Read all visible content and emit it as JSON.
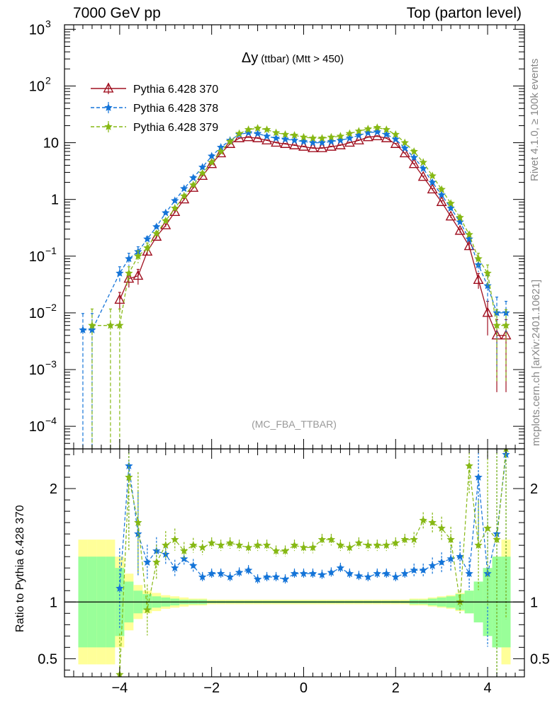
{
  "header": {
    "left": "7000 GeV pp",
    "right": "Top (parton level)"
  },
  "side_labels": {
    "top": "Rivet 4.1.0, ≥ 100k events",
    "bottom": "mcplots.cern.ch [arXiv:2401.10621]"
  },
  "chart_data": {
    "type": "line",
    "title_symbol": "Δy",
    "title_main": "(ttbar)",
    "title_cut": "(Mtt > 450)",
    "analysis_label": "(MC_FBA_TTBAR)",
    "xlabel": "",
    "ylabel": "",
    "ratio_ylabel": "Ratio to Pythia 6.428 370",
    "xlim": [
      -5.2,
      4.8
    ],
    "ylim": [
      4e-05,
      1200
    ],
    "yscale": "log",
    "ratio_ylim": [
      0.34,
      2.35
    ],
    "x_ticks": [
      -4,
      -2,
      0,
      2,
      4
    ],
    "x_tick_labels": [
      "−4",
      "−2",
      "0",
      "2",
      "4"
    ],
    "y_ticks": [
      0.0001,
      0.001,
      0.01,
      0.1,
      1,
      10,
      100,
      1000
    ],
    "y_tick_labels": [
      {
        "base": "10",
        "exp": "−4"
      },
      {
        "base": "10",
        "exp": "−3"
      },
      {
        "base": "10",
        "exp": "−2"
      },
      {
        "base": "10",
        "exp": "−1"
      },
      {
        "base": "1",
        "exp": ""
      },
      {
        "base": "10",
        "exp": ""
      },
      {
        "base": "10",
        "exp": "2"
      },
      {
        "base": "10",
        "exp": "3"
      }
    ],
    "ratio_ticks": [
      0.5,
      1,
      2
    ],
    "ratio_tick_labels": [
      "0.5",
      "1",
      "2"
    ],
    "legend_position": "top-left",
    "x": [
      -4.8,
      -4.6,
      -4.4,
      -4.2,
      -4.0,
      -3.8,
      -3.6,
      -3.4,
      -3.2,
      -3.0,
      -2.8,
      -2.6,
      -2.4,
      -2.2,
      -2.0,
      -1.8,
      -1.6,
      -1.4,
      -1.2,
      -1.0,
      -0.8,
      -0.6,
      -0.4,
      -0.2,
      0.0,
      0.2,
      0.4,
      0.6,
      0.8,
      1.0,
      1.2,
      1.4,
      1.6,
      1.8,
      2.0,
      2.2,
      2.4,
      2.6,
      2.8,
      3.0,
      3.2,
      3.4,
      3.6,
      3.8,
      4.0,
      4.2,
      4.4
    ],
    "series": [
      {
        "name": "Pythia 6.428 370",
        "color": "#a01020",
        "marker": "triangle",
        "dash": "",
        "values": [
          null,
          null,
          null,
          null,
          0.017,
          0.04,
          0.045,
          0.12,
          0.22,
          0.35,
          0.6,
          1.0,
          1.6,
          2.6,
          4.2,
          6.5,
          9.5,
          12.0,
          12.5,
          12.0,
          11.0,
          10.0,
          9.5,
          9.0,
          8.5,
          8.0,
          8.0,
          8.5,
          9.0,
          10.0,
          11.0,
          12.5,
          13.0,
          12.0,
          9.5,
          6.5,
          4.2,
          2.5,
          1.5,
          0.9,
          0.5,
          0.28,
          0.15,
          0.038,
          0.01,
          0.004,
          0.004
        ],
        "errors_rel": [
          0,
          0,
          0,
          0,
          0.35,
          0.3,
          0.3,
          0.12,
          0.08,
          0.06,
          0.05,
          0.04,
          0.03,
          0.02,
          0.02,
          0.02,
          0.02,
          0.02,
          0.02,
          0.02,
          0.02,
          0.02,
          0.02,
          0.02,
          0.02,
          0.02,
          0.02,
          0.02,
          0.02,
          0.02,
          0.02,
          0.02,
          0.02,
          0.02,
          0.02,
          0.02,
          0.02,
          0.03,
          0.04,
          0.05,
          0.06,
          0.08,
          0.12,
          0.3,
          0.6,
          0.9,
          0.9
        ],
        "ratio": []
      },
      {
        "name": "Pythia 6.428 378",
        "color": "#1474d8",
        "marker": "star",
        "dash": "5,3",
        "values": [
          0.005,
          0.005,
          null,
          null,
          0.05,
          0.09,
          0.12,
          0.2,
          0.33,
          0.58,
          0.95,
          1.55,
          2.4,
          3.7,
          5.8,
          8.3,
          11.0,
          14.0,
          15.0,
          14.5,
          13.0,
          12.0,
          11.5,
          11.0,
          10.5,
          10.0,
          10.0,
          10.5,
          11.0,
          12.0,
          13.5,
          15.0,
          15.5,
          14.0,
          11.5,
          8.0,
          5.5,
          3.5,
          2.0,
          1.2,
          0.7,
          0.4,
          0.2,
          0.07,
          0.03,
          0.01,
          0.01
        ],
        "errors_rel": [
          0.95,
          0.95,
          0,
          0,
          0.3,
          0.25,
          0.22,
          0.1,
          0.07,
          0.05,
          0.04,
          0.03,
          0.03,
          0.02,
          0.02,
          0.02,
          0.02,
          0.02,
          0.02,
          0.02,
          0.02,
          0.02,
          0.02,
          0.02,
          0.02,
          0.02,
          0.02,
          0.02,
          0.02,
          0.02,
          0.02,
          0.02,
          0.02,
          0.02,
          0.02,
          0.02,
          0.03,
          0.03,
          0.04,
          0.05,
          0.06,
          0.08,
          0.1,
          0.25,
          0.5,
          0.9,
          0.6
        ],
        "ratio": [
          null,
          null,
          null,
          null,
          1.12,
          2.2,
          1.6,
          1.35,
          1.45,
          1.42,
          1.3,
          1.38,
          1.32,
          1.22,
          1.25,
          1.25,
          1.22,
          1.26,
          1.28,
          1.2,
          1.22,
          1.22,
          1.2,
          1.25,
          1.25,
          1.25,
          1.24,
          1.26,
          1.3,
          1.25,
          1.23,
          1.22,
          1.25,
          1.25,
          1.22,
          1.25,
          1.28,
          1.28,
          1.32,
          1.35,
          1.38,
          1.4,
          1.25,
          2.1,
          1.25,
          1.6,
          2.3
        ]
      },
      {
        "name": "Pythia 6.428 379",
        "color": "#86b814",
        "marker": "star",
        "dash": "5,3",
        "values": [
          null,
          0.006,
          null,
          0.006,
          0.006,
          0.05,
          0.1,
          0.14,
          0.25,
          0.42,
          0.7,
          1.15,
          1.8,
          2.9,
          4.5,
          7.0,
          10.5,
          14.5,
          17.0,
          18.0,
          17.0,
          15.0,
          14.0,
          13.5,
          12.5,
          12.0,
          12.0,
          12.5,
          13.0,
          14.5,
          16.0,
          17.5,
          18.5,
          17.0,
          14.0,
          10.0,
          7.0,
          4.5,
          2.6,
          1.5,
          0.85,
          0.48,
          0.24,
          0.09,
          0.05,
          0.006,
          0.006
        ],
        "errors_rel": [
          0,
          0.95,
          0,
          0.95,
          0.95,
          0.3,
          0.25,
          0.22,
          0.1,
          0.07,
          0.05,
          0.04,
          0.03,
          0.03,
          0.02,
          0.02,
          0.02,
          0.02,
          0.02,
          0.02,
          0.02,
          0.02,
          0.02,
          0.02,
          0.02,
          0.02,
          0.02,
          0.02,
          0.02,
          0.02,
          0.02,
          0.02,
          0.02,
          0.02,
          0.02,
          0.02,
          0.03,
          0.03,
          0.04,
          0.05,
          0.06,
          0.08,
          0.1,
          0.25,
          0.4,
          0.9,
          0.9
        ],
        "ratio": [
          null,
          null,
          null,
          null,
          0.36,
          2.1,
          1.7,
          0.93,
          1.35,
          1.5,
          1.55,
          1.45,
          1.5,
          1.48,
          1.52,
          1.5,
          1.52,
          1.5,
          1.48,
          1.5,
          1.5,
          1.45,
          1.45,
          1.5,
          1.48,
          1.48,
          1.55,
          1.55,
          1.5,
          1.48,
          1.52,
          1.5,
          1.5,
          1.5,
          1.52,
          1.55,
          1.55,
          1.72,
          1.7,
          1.65,
          1.55,
          1.0,
          2.2,
          1.5,
          1.65,
          1.55,
          2.35
        ]
      }
    ],
    "uncertainty_bands": {
      "band_95": [
        0.45,
        0.45,
        0.45,
        0.45,
        0.6,
        0.75,
        0.85,
        0.9,
        0.92,
        0.94,
        0.95,
        0.96,
        0.97,
        0.97,
        0.98,
        0.98,
        0.98,
        0.98,
        0.98,
        0.98,
        0.98,
        0.98,
        0.98,
        0.98,
        0.98,
        0.98,
        0.98,
        0.98,
        0.98,
        0.98,
        0.98,
        0.98,
        0.98,
        0.98,
        0.98,
        0.98,
        0.97,
        0.97,
        0.96,
        0.95,
        0.94,
        0.92,
        0.9,
        0.85,
        0.75,
        0.6,
        0.45
      ],
      "band_68": [
        0.6,
        0.6,
        0.6,
        0.6,
        0.7,
        0.82,
        0.9,
        0.93,
        0.95,
        0.96,
        0.97,
        0.98,
        0.98,
        0.98,
        0.99,
        0.99,
        0.99,
        0.99,
        0.99,
        0.99,
        0.99,
        0.99,
        0.99,
        0.99,
        0.99,
        0.99,
        0.99,
        0.99,
        0.99,
        0.99,
        0.99,
        0.99,
        0.99,
        0.99,
        0.99,
        0.99,
        0.98,
        0.98,
        0.97,
        0.96,
        0.95,
        0.93,
        0.9,
        0.82,
        0.7,
        0.6,
        0.6
      ]
    }
  },
  "colors": {
    "band_yellow": "#ffff99",
    "band_green": "#99ff99"
  }
}
